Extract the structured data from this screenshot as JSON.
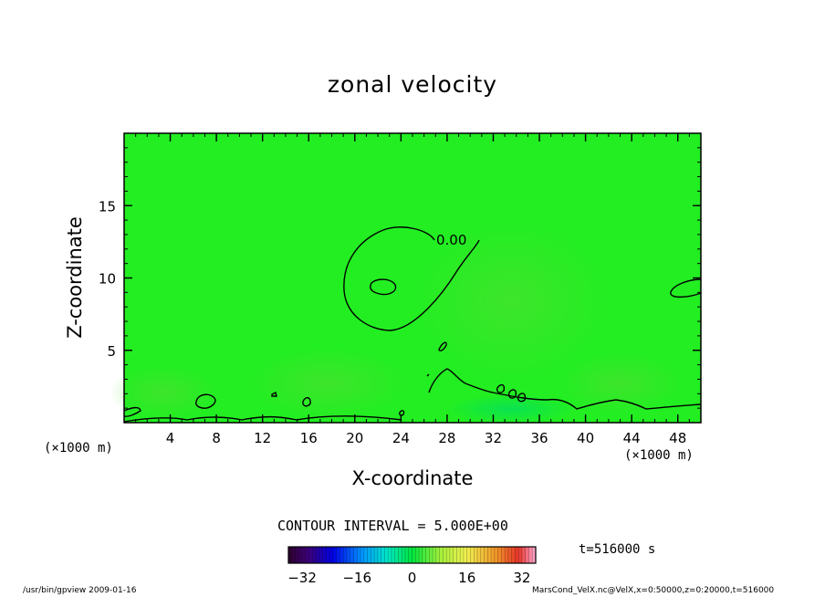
{
  "chart_data": {
    "type": "heatmap",
    "title": "zonal velocity",
    "xlabel": "X-coordinate",
    "ylabel": "Z-coordinate",
    "x_unit_label": "(×1000 m)",
    "xlim": [
      0,
      50
    ],
    "ylim": [
      0,
      20
    ],
    "x_ticks": [
      4,
      8,
      12,
      16,
      20,
      24,
      28,
      32,
      36,
      40,
      44,
      48
    ],
    "y_ticks": [
      5,
      10,
      15
    ],
    "contour_interval_label": "CONTOUR INTERVAL = 5.000E+00",
    "contour_label": "0.00",
    "colorbar": {
      "ticks": [
        -32,
        -16,
        0,
        16,
        32
      ],
      "range": [
        -36,
        36
      ]
    },
    "time_label": "t=516000 s",
    "background_color": "#22ee22"
  },
  "footer": {
    "left": "/usr/bin/gpview   2009-01-16",
    "right": "MarsCond_VelX.nc@VelX,x=0:50000,z=0:20000,t=516000"
  }
}
